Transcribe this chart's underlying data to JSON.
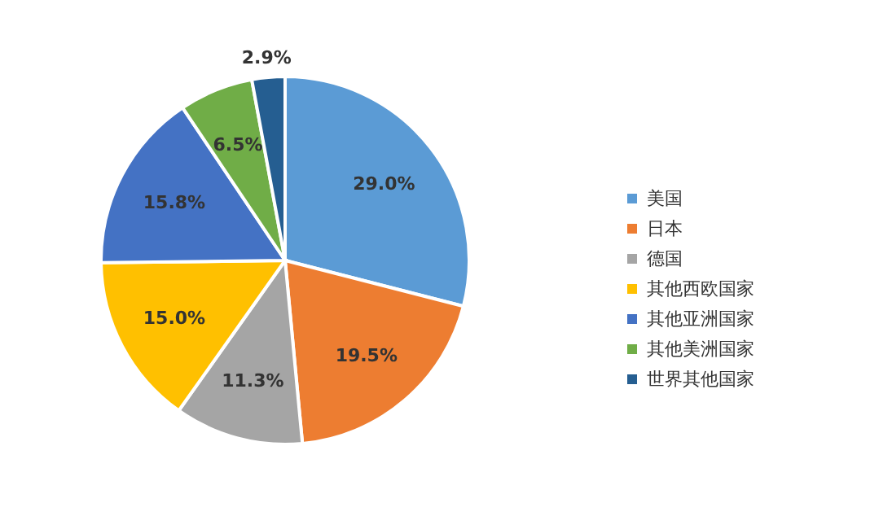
{
  "chart_data": {
    "type": "pie",
    "categories": [
      "美国",
      "日本",
      "德国",
      "其他西欧国家",
      "其他亚洲国家",
      "其他美洲国家",
      "世界其他国家"
    ],
    "values": [
      29.0,
      19.5,
      11.3,
      15.0,
      15.8,
      6.5,
      2.9
    ],
    "value_labels": [
      "29.0%",
      "19.5%",
      "11.3%",
      "15.0%",
      "15.8%",
      "6.5%",
      "2.9%"
    ],
    "colors": [
      "#5b9bd5",
      "#ed7d31",
      "#a5a5a5",
      "#ffc000",
      "#4472c4",
      "#70ad47",
      "#255e91"
    ],
    "legend": "right"
  }
}
